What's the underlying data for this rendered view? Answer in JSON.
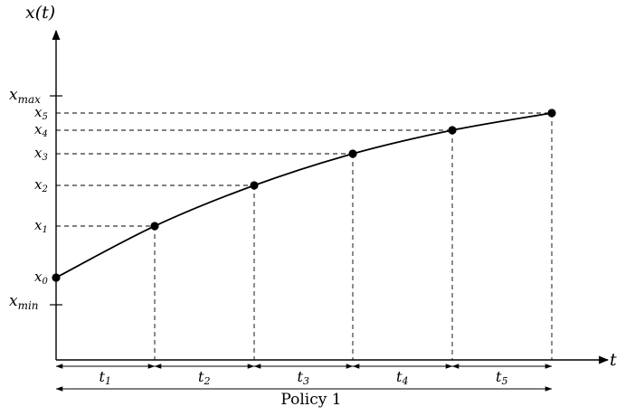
{
  "figure": {
    "x_axis_label": "t",
    "y_axis_label": "x(t)",
    "bottom_label": "Policy 1"
  },
  "y_ticks": {
    "x_max": {
      "base": "x",
      "sub": "max"
    },
    "x_min": {
      "base": "x",
      "sub": "min"
    }
  },
  "points": [
    {
      "label_base": "x",
      "label_sub": "0"
    },
    {
      "label_base": "x",
      "label_sub": "1"
    },
    {
      "label_base": "x",
      "label_sub": "2"
    },
    {
      "label_base": "x",
      "label_sub": "3"
    },
    {
      "label_base": "x",
      "label_sub": "4"
    },
    {
      "label_base": "x",
      "label_sub": "5"
    }
  ],
  "intervals": [
    {
      "base": "t",
      "sub": "1"
    },
    {
      "base": "t",
      "sub": "2"
    },
    {
      "base": "t",
      "sub": "3"
    },
    {
      "base": "t",
      "sub": "4"
    },
    {
      "base": "t",
      "sub": "5"
    }
  ]
}
